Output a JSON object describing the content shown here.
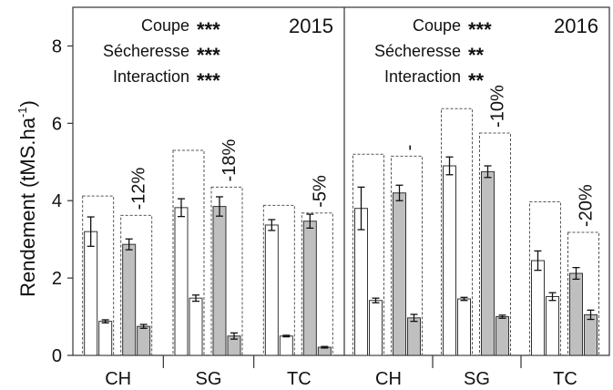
{
  "chart_data": {
    "type": "bar",
    "ylabel": "Rendement (tMS.ha-1)",
    "ylabel_main": "Rendement (tMS.ha",
    "ylabel_sup": "-1",
    "ylabel_close": ")",
    "ylim": [
      0,
      9
    ],
    "yticks": [
      "0",
      "2",
      "4",
      "6",
      "8"
    ],
    "categories": [
      "CH",
      "SG",
      "TC"
    ],
    "panels": [
      {
        "year": "2015",
        "stats": [
          {
            "label": "Coupe",
            "sig": "***"
          },
          {
            "label": "Sécheresse",
            "sig": "***"
          },
          {
            "label": "Interaction",
            "sig": "***"
          }
        ],
        "groups": [
          {
            "category": "CH",
            "pct": "-12%",
            "pairs": [
              {
                "total": 4.12,
                "first": 3.2,
                "first_err": 0.38,
                "second": 0.88,
                "second_err": 0.04,
                "fill": "#ffffff"
              },
              {
                "total": 3.62,
                "first": 2.87,
                "first_err": 0.14,
                "second": 0.75,
                "second_err": 0.05,
                "fill": "#bfbfbf"
              }
            ]
          },
          {
            "category": "SG",
            "pct": "-18%",
            "pairs": [
              {
                "total": 5.3,
                "first": 3.82,
                "first_err": 0.23,
                "second": 1.48,
                "second_err": 0.08,
                "fill": "#ffffff"
              },
              {
                "total": 4.35,
                "first": 3.85,
                "first_err": 0.25,
                "second": 0.5,
                "second_err": 0.08,
                "fill": "#bfbfbf"
              }
            ]
          },
          {
            "category": "TC",
            "pct": "-5%",
            "pairs": [
              {
                "total": 3.88,
                "first": 3.37,
                "first_err": 0.14,
                "second": 0.5,
                "second_err": 0.02,
                "fill": "#ffffff"
              },
              {
                "total": 3.68,
                "first": 3.47,
                "first_err": 0.18,
                "second": 0.21,
                "second_err": 0.02,
                "fill": "#bfbfbf"
              }
            ]
          }
        ]
      },
      {
        "year": "2016",
        "stats": [
          {
            "label": "Coupe",
            "sig": "***"
          },
          {
            "label": "Sécheresse",
            "sig": "**"
          },
          {
            "label": "Interaction",
            "sig": "**"
          }
        ],
        "groups": [
          {
            "category": "CH",
            "pct": "-",
            "pairs": [
              {
                "total": 5.2,
                "first": 3.8,
                "first_err": 0.55,
                "second": 1.42,
                "second_err": 0.06,
                "fill": "#ffffff"
              },
              {
                "total": 5.15,
                "first": 4.2,
                "first_err": 0.2,
                "second": 0.97,
                "second_err": 0.09,
                "fill": "#bfbfbf"
              }
            ]
          },
          {
            "category": "SG",
            "pct": "-10%",
            "pairs": [
              {
                "total": 6.38,
                "first": 4.9,
                "first_err": 0.23,
                "second": 1.46,
                "second_err": 0.04,
                "fill": "#ffffff"
              },
              {
                "total": 5.75,
                "first": 4.75,
                "first_err": 0.15,
                "second": 1.0,
                "second_err": 0.04,
                "fill": "#bfbfbf"
              }
            ]
          },
          {
            "category": "TC",
            "pct": "-20%",
            "pairs": [
              {
                "total": 3.97,
                "first": 2.45,
                "first_err": 0.25,
                "second": 1.52,
                "second_err": 0.1,
                "fill": "#ffffff"
              },
              {
                "total": 3.18,
                "first": 2.12,
                "first_err": 0.15,
                "second": 1.05,
                "second_err": 0.12,
                "fill": "#bfbfbf"
              }
            ]
          }
        ]
      }
    ]
  }
}
